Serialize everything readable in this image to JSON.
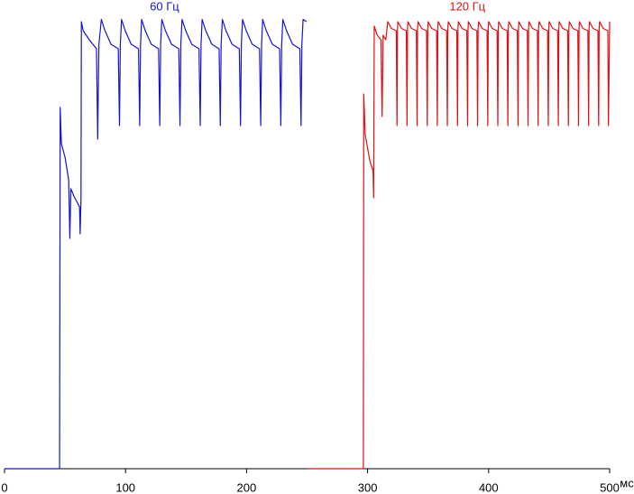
{
  "chart_data": {
    "type": "line",
    "x_label": "мс",
    "xlim": [
      0,
      500
    ],
    "xticks": [
      0,
      100,
      200,
      300,
      400,
      500
    ],
    "ylim": [
      0,
      100
    ],
    "series": [
      {
        "name": "60 Гц",
        "color": "#1414d2",
        "x": [
          0,
          45.5,
          46,
          47,
          50,
          53,
          54,
          54.8,
          58,
          62,
          62.5,
          63.2,
          63.5,
          65,
          70,
          76,
          77,
          78,
          80,
          83,
          88,
          94,
          95,
          95.7,
          96.7,
          99.7,
          104.7,
          110.7,
          111.7,
          112.4,
          113.3,
          116.3,
          121.3,
          127.3,
          128.3,
          129,
          130,
          133,
          138,
          144,
          145,
          145.7,
          146.7,
          149.7,
          154.7,
          160.7,
          161.7,
          162.4,
          163.3,
          166.3,
          171.3,
          177.3,
          178.3,
          179,
          180,
          183,
          188,
          194,
          195,
          195.7,
          196.7,
          199.7,
          204.7,
          210.7,
          211.7,
          212.4,
          213.3,
          216.3,
          221.3,
          227.3,
          228.3,
          229,
          230,
          233,
          238,
          244,
          245,
          245.7,
          246.7,
          249.5
        ],
        "values": [
          0,
          0,
          80,
          72,
          69,
          64,
          51,
          62,
          60,
          58,
          52,
          60,
          99,
          97,
          95,
          93,
          73,
          94,
          99.5,
          97,
          94,
          93,
          76,
          94,
          99.5,
          97,
          94,
          93,
          76,
          94,
          99.5,
          97,
          94,
          93,
          76,
          94,
          99.5,
          97,
          94,
          93,
          76,
          94,
          99.5,
          97,
          94,
          93,
          76,
          94,
          99.5,
          97,
          94,
          93,
          76,
          94,
          99.5,
          97,
          94,
          93,
          76,
          94,
          99.5,
          97,
          94,
          93,
          76,
          94,
          99.5,
          97,
          94,
          93,
          76,
          94,
          99.5,
          97,
          94,
          93,
          76,
          94,
          99.5,
          99
        ]
      },
      {
        "name": "120 Гц",
        "color": "#e01010",
        "x": [
          250,
          296.5,
          296.8,
          298,
          300,
          302,
          304.5,
          305,
          305.5,
          308,
          311,
          312,
          312.8,
          315,
          316.7,
          319.7,
          323.7,
          324.3,
          324.7,
          325,
          328,
          332,
          332.6,
          333,
          333.3,
          336.3,
          340.3,
          340.9,
          341.3,
          341.7,
          344.7,
          348.7,
          349.3,
          349.7,
          350,
          353,
          357,
          357.6,
          358,
          358.3,
          361.3,
          365.3,
          365.9,
          366.3,
          366.7,
          369.7,
          373.7,
          374.3,
          374.7,
          375,
          378,
          382,
          382.6,
          383,
          383.3,
          386.3,
          390.3,
          390.9,
          391.3,
          391.7,
          394.7,
          398.7,
          399.3,
          399.7,
          400,
          403,
          407,
          407.6,
          408,
          408.3,
          411.3,
          415.3,
          415.9,
          416.3,
          416.7,
          419.7,
          423.7,
          424.3,
          424.7,
          425,
          428,
          432,
          432.6,
          433,
          433.3,
          436.3,
          440.3,
          440.9,
          441.3,
          441.7,
          444.7,
          448.7,
          449.3,
          449.7,
          450,
          453,
          457,
          457.6,
          458,
          458.3,
          461.3,
          465.3,
          465.9,
          466.3,
          466.7,
          469.7,
          473.7,
          474.3,
          474.7,
          475,
          478,
          482,
          482.6,
          483,
          483.3,
          486.3,
          490.3,
          490.9,
          491.3,
          491.7,
          494.7,
          498.5,
          499,
          500
        ],
        "values": [
          0,
          0,
          83,
          74,
          71,
          68,
          66,
          60,
          98,
          96,
          95,
          78,
          96,
          95,
          99,
          97.5,
          97,
          76,
          97.5,
          99,
          97.5,
          97,
          76,
          97.5,
          99,
          97.5,
          97,
          76,
          97.5,
          99,
          97.5,
          97,
          76,
          97.5,
          99,
          97.5,
          97,
          76,
          97.5,
          99,
          97.5,
          97,
          76,
          97.5,
          99,
          97.5,
          97,
          76,
          97.5,
          99,
          97.5,
          97,
          76,
          97.5,
          99,
          97.5,
          97,
          76,
          97.5,
          99,
          97.5,
          97,
          76,
          97.5,
          99,
          97.5,
          97,
          76,
          97.5,
          99,
          97.5,
          97,
          76,
          97.5,
          99,
          97.5,
          97,
          76,
          97.5,
          99,
          97.5,
          97,
          76,
          97.5,
          99,
          97.5,
          97,
          76,
          97.5,
          99,
          97.5,
          97,
          76,
          97.5,
          99,
          97.5,
          97,
          76,
          97.5,
          99,
          97.5,
          97,
          76,
          97.5,
          99,
          97.5,
          97,
          76,
          97.5,
          99,
          97.5,
          97,
          76,
          97.5,
          99,
          97.5,
          97,
          76,
          97.5,
          99,
          97.5,
          97,
          76,
          99
        ]
      }
    ]
  }
}
